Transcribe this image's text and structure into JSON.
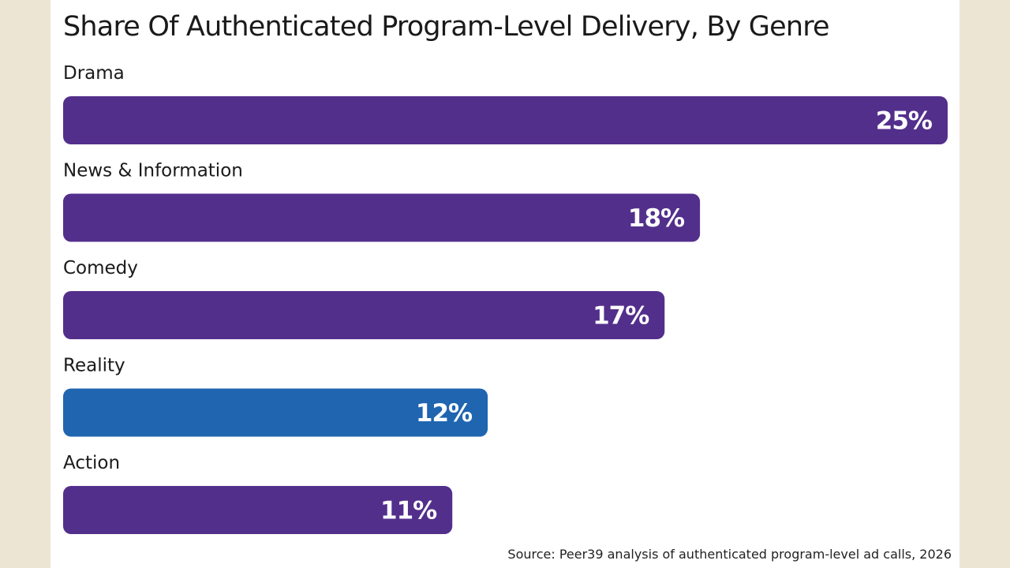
{
  "chart_data": {
    "type": "bar",
    "orientation": "horizontal",
    "title": "Share Of Authenticated Program-Level Delivery, By Genre",
    "categories": [
      "Drama",
      "News & Information",
      "Comedy",
      "Reality",
      "Action"
    ],
    "values": [
      25,
      18,
      17,
      12,
      11
    ],
    "value_labels": [
      "25%",
      "18%",
      "17%",
      "12%",
      "11%"
    ],
    "xlim": [
      0,
      25
    ],
    "grid": false,
    "legend": "none",
    "colors": {
      "default": "#532f8c",
      "highlight": "#1f65b0",
      "highlight_category": "Reality",
      "label_text": "#ffffff"
    }
  },
  "source": "Source: Peer39 analysis of authenticated program-level ad calls, 2026"
}
